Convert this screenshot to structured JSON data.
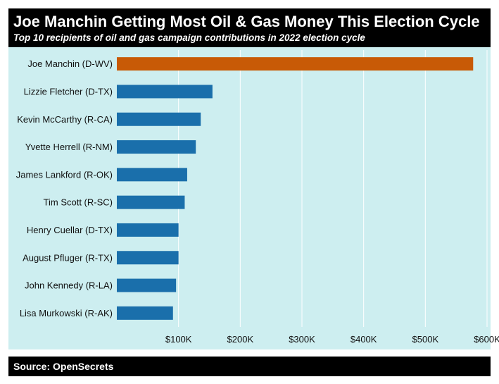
{
  "header": {
    "title": "Joe Manchin Getting Most Oil & Gas Money This Election Cycle",
    "subtitle": "Top 10 recipients of oil and gas campaign contributions in 2022 election cycle"
  },
  "footer": {
    "source": "Source: OpenSecrets"
  },
  "colors": {
    "highlight": "#c85a06",
    "bar": "#1a6fab",
    "panel": "#cdeef0",
    "grid": "#ffffff",
    "header": "#000000"
  },
  "chart_data": {
    "type": "bar",
    "orientation": "horizontal",
    "categories": [
      "Joe Manchin (D-WV)",
      "Lizzie Fletcher (D-TX)",
      "Kevin McCarthy (R-CA)",
      "Yvette Herrell (R-NM)",
      "James Lankford (R-OK)",
      "Tim Scott (R-SC)",
      "Henry Cuellar (D-TX)",
      "August Pfluger (R-TX)",
      "John Kennedy (R-LA)",
      "Lisa Murkowski (R-AK)"
    ],
    "values": [
      577500,
      155000,
      136000,
      128000,
      114000,
      110000,
      100000,
      100000,
      96000,
      91000
    ],
    "highlight_index": 0,
    "xlim": [
      0,
      600000
    ],
    "x_ticks": [
      100000,
      200000,
      300000,
      400000,
      500000,
      600000
    ],
    "x_tick_labels": [
      "$100K",
      "$200K",
      "$300K",
      "$400K",
      "$500K",
      "$600K"
    ],
    "grid": true
  }
}
